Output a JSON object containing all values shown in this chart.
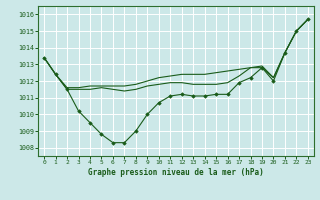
{
  "background_color": "#cce8e8",
  "grid_color": "#ffffff",
  "line_color": "#1a5c1a",
  "title": "Graphe pression niveau de la mer (hPa)",
  "ylim": [
    1007.5,
    1016.5
  ],
  "yticks": [
    1008,
    1009,
    1010,
    1011,
    1012,
    1013,
    1014,
    1015,
    1016
  ],
  "xlim": [
    -0.5,
    23.5
  ],
  "xticks": [
    0,
    1,
    2,
    3,
    4,
    5,
    6,
    7,
    8,
    9,
    10,
    11,
    12,
    13,
    14,
    15,
    16,
    17,
    18,
    19,
    20,
    21,
    22,
    23
  ],
  "series": [
    {
      "x": [
        0,
        1,
        2,
        3,
        4,
        5,
        6,
        7,
        8,
        9,
        10,
        11,
        12,
        13,
        14,
        15,
        16,
        17,
        18,
        19,
        20,
        21,
        22,
        23
      ],
      "y": [
        1013.4,
        1012.4,
        1011.5,
        1010.2,
        1009.5,
        1008.8,
        1008.3,
        1008.3,
        1009.0,
        1010.0,
        1010.7,
        1011.1,
        1011.2,
        1011.1,
        1011.1,
        1011.2,
        1011.2,
        1011.9,
        1012.2,
        1012.8,
        1012.0,
        1013.7,
        1015.0,
        1015.7
      ],
      "marker": true
    },
    {
      "x": [
        0,
        1,
        2,
        3,
        4,
        5,
        6,
        7,
        8,
        9,
        10,
        11,
        12,
        13,
        14,
        15,
        16,
        17,
        18,
        19,
        20,
        21,
        22,
        23
      ],
      "y": [
        1013.4,
        1012.4,
        1011.6,
        1011.6,
        1011.7,
        1011.7,
        1011.7,
        1011.7,
        1011.8,
        1012.0,
        1012.2,
        1012.3,
        1012.4,
        1012.4,
        1012.4,
        1012.5,
        1012.6,
        1012.7,
        1012.8,
        1012.9,
        1012.2,
        1013.7,
        1015.0,
        1015.7
      ],
      "marker": false
    },
    {
      "x": [
        0,
        1,
        2,
        3,
        4,
        5,
        6,
        7,
        8,
        9,
        10,
        11,
        12,
        13,
        14,
        15,
        16,
        17,
        18,
        19,
        20,
        21,
        22,
        23
      ],
      "y": [
        1013.4,
        1012.4,
        1011.5,
        1011.5,
        1011.5,
        1011.6,
        1011.5,
        1011.4,
        1011.5,
        1011.7,
        1011.8,
        1011.9,
        1011.9,
        1011.8,
        1011.8,
        1011.8,
        1011.9,
        1012.3,
        1012.8,
        1012.8,
        1012.2,
        1013.7,
        1015.0,
        1015.7
      ],
      "marker": false
    }
  ]
}
